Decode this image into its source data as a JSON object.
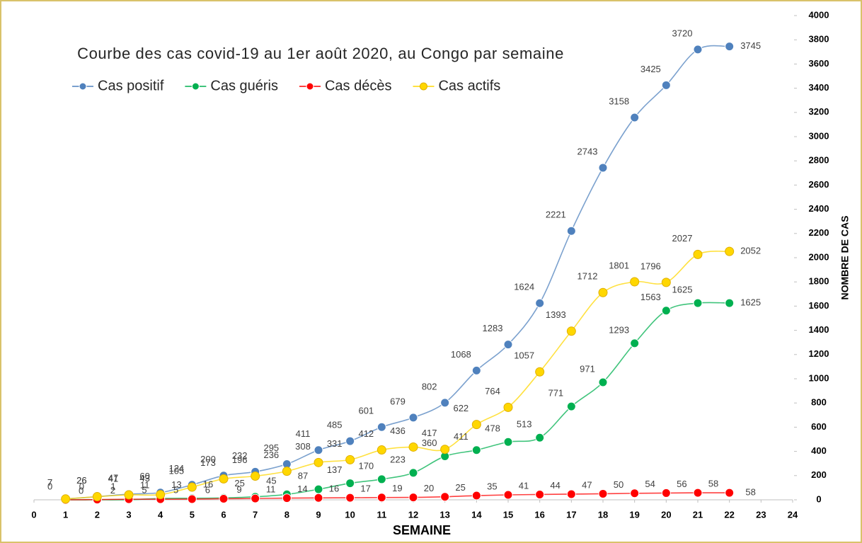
{
  "chart_data": {
    "type": "line",
    "title": "Courbe des cas covid-19 au 1er août 2020, au Congo par semaine",
    "x_label": "SEMAINE",
    "y_label": "NOMBRE DE CAS",
    "x": [
      1,
      2,
      3,
      4,
      5,
      6,
      7,
      8,
      9,
      10,
      11,
      12,
      13,
      14,
      15,
      16,
      17,
      18,
      19,
      20,
      21,
      22
    ],
    "series": [
      {
        "name": "Cas positif",
        "color": "#4f81bd",
        "values": [
          7,
          26,
          47,
          60,
          124,
          200,
          232,
          295,
          411,
          485,
          601,
          679,
          802,
          1068,
          1283,
          1624,
          2221,
          2743,
          3158,
          3425,
          3720,
          3745
        ]
      },
      {
        "name": "Cas guéris",
        "color": "#00b050",
        "values": [
          0,
          0,
          1,
          11,
          13,
          16,
          25,
          45,
          87,
          137,
          170,
          223,
          360,
          411,
          478,
          513,
          771,
          971,
          1293,
          1563,
          1625,
          1625
        ]
      },
      {
        "name": "Cas décès",
        "color": "#ff0000",
        "values": [
          0,
          2,
          5,
          5,
          6,
          9,
          11,
          14,
          16,
          17,
          19,
          20,
          25,
          35,
          41,
          44,
          47,
          50,
          54,
          56,
          58,
          58
        ]
      },
      {
        "name": "Cas actifs",
        "color": "#ffd700",
        "values": [
          7,
          26,
          41,
          43,
          105,
          173,
          196,
          236,
          308,
          331,
          412,
          436,
          417,
          622,
          764,
          1057,
          1393,
          1712,
          1801,
          1796,
          2027,
          2052
        ]
      }
    ],
    "xlim": [
      0,
      24
    ],
    "xticks": [
      0,
      1,
      2,
      3,
      4,
      5,
      6,
      7,
      8,
      9,
      10,
      11,
      12,
      13,
      14,
      15,
      16,
      17,
      18,
      19,
      20,
      21,
      22,
      23,
      24
    ],
    "ylim": [
      0,
      4000
    ],
    "yticks": [
      0,
      200,
      400,
      600,
      800,
      1000,
      1200,
      1400,
      1600,
      1800,
      2000,
      2200,
      2400,
      2600,
      2800,
      3000,
      3200,
      3400,
      3600,
      3800,
      4000
    ],
    "legend": "top-left"
  }
}
